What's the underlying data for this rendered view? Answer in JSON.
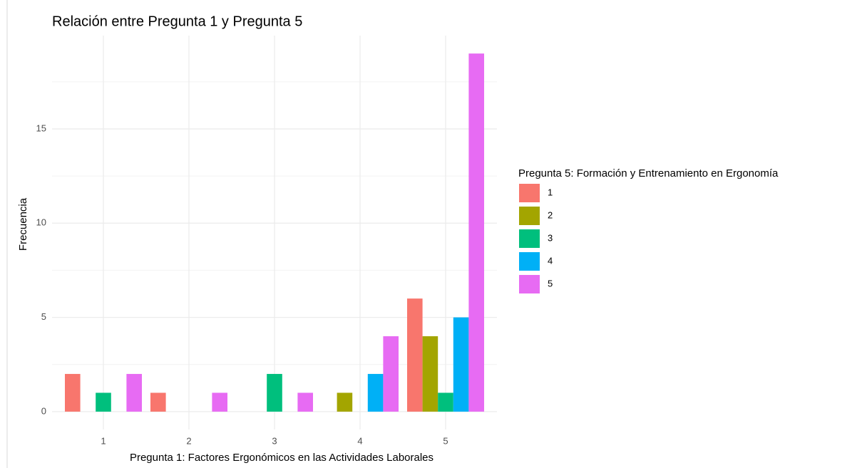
{
  "chart_data": {
    "type": "bar",
    "title": "Relación entre Pregunta 1 y Pregunta 5",
    "x_label": "Pregunta 1: Factores Ergonómicos en las Actividades Laborales",
    "y_label": "Frecuencia",
    "legend_title": "Pregunta 5: Formación y Entrenamiento en Ergonomía",
    "categories": [
      "1",
      "2",
      "3",
      "4",
      "5"
    ],
    "series": [
      {
        "name": "1",
        "color": "#f8766d",
        "values": [
          2,
          1,
          0,
          0,
          6
        ]
      },
      {
        "name": "2",
        "color": "#a3a500",
        "values": [
          0,
          0,
          0,
          1,
          4
        ]
      },
      {
        "name": "3",
        "color": "#00bf7d",
        "values": [
          1,
          0,
          2,
          0,
          1
        ]
      },
      {
        "name": "4",
        "color": "#00b0f6",
        "values": [
          0,
          0,
          0,
          2,
          5
        ]
      },
      {
        "name": "5",
        "color": "#e76bf3",
        "values": [
          2,
          1,
          1,
          4,
          19
        ]
      }
    ],
    "ylim": [
      -0.95,
      19.95
    ],
    "yticks": [
      0,
      5,
      10,
      15
    ],
    "y_minor_ticks": [
      2.5,
      7.5,
      12.5,
      17.5
    ],
    "grid": true,
    "legend": "right"
  }
}
